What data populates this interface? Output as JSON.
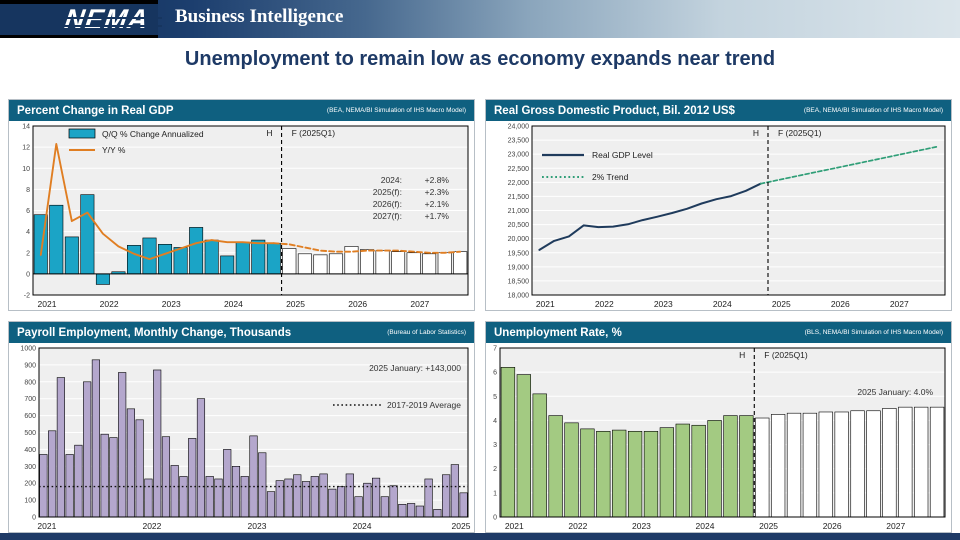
{
  "banner": {
    "logo_text": "NEMA",
    "app_title": "Business Intelligence"
  },
  "page_title": "Unemployment to remain low as economy expands near trend",
  "colors": {
    "panel_header": "#0f6080",
    "accent_navy": "#1e3a66",
    "bar_teal": "#1ba4c6",
    "line_orange": "#e07e22",
    "line_navy": "#1f3b5c",
    "trend_green": "#2f9e77",
    "bar_purple": "#b4a7cd",
    "bar_green": "#a3ca82",
    "forecast_white": "#ffffff",
    "plot_bg": "#efefef"
  },
  "panels": [
    {
      "title": "Percent Change in Real GDP",
      "source": "(BEA, NEMA/BI Simulation of IHS Macro Model)"
    },
    {
      "title": "Real Gross Domestic Product, Bil. 2012 US$",
      "source": "(BEA, NEMA/BI Simulation of IHS Macro Model)"
    },
    {
      "title": "Payroll Employment, Monthly Change, Thousands",
      "source": "(Bureau of Labor Statistics)"
    },
    {
      "title": "Unemployment Rate, %",
      "source": "(BLS, NEMA/BI Simulation of IHS Macro Model)"
    }
  ],
  "chart_data": [
    {
      "id": "gdp_change",
      "type": "bar+line",
      "title": "Percent Change in Real GDP",
      "x_years": [
        "2021",
        "2022",
        "2023",
        "2024",
        "2025",
        "2026",
        "2027"
      ],
      "slots_per_year": 4,
      "slots": 28,
      "history_slots": 16,
      "ylim": [
        -2,
        14
      ],
      "ytick_step": 2,
      "bars_label": "Q/Q % Change Annualized",
      "bars_history": [
        5.6,
        6.5,
        3.5,
        7.5,
        -1.0,
        0.2,
        2.7,
        3.4,
        2.8,
        2.5,
        4.4,
        3.2,
        1.7,
        3.0,
        3.2,
        2.9
      ],
      "bars_forecast": [
        2.4,
        1.9,
        1.8,
        1.9,
        2.6,
        2.3,
        2.2,
        2.1,
        2.0,
        1.9,
        2.0,
        2.1
      ],
      "line_label": "Y/Y %",
      "line_history": [
        1.8,
        12.3,
        5.0,
        5.8,
        3.8,
        2.6,
        1.9,
        1.4,
        1.9,
        2.4,
        2.9,
        3.2,
        3.0,
        3.0,
        2.9,
        2.9
      ],
      "line_forecast": [
        2.8,
        2.5,
        2.2,
        2.1,
        2.1,
        2.2,
        2.2,
        2.2,
        2.1,
        2.0,
        2.0,
        2.1
      ],
      "divider": {
        "history_label": "H",
        "forecast_label": "F (2025Q1)"
      },
      "annotation_rows": [
        {
          "label": "2024:",
          "value": "+2.8%"
        },
        {
          "label": "2025(f):",
          "value": "+2.3%"
        },
        {
          "label": "2026(f):",
          "value": "+2.1%"
        },
        {
          "label": "2027(f):",
          "value": "+1.7%"
        }
      ]
    },
    {
      "id": "real_gdp",
      "type": "line",
      "title": "Real Gross Domestic Product, Bil. 2012 US$",
      "x_years": [
        "2021",
        "2022",
        "2023",
        "2024",
        "2025",
        "2026",
        "2027"
      ],
      "slots_per_year": 4,
      "slots": 28,
      "history_slots": 16,
      "ylim": [
        18000,
        24000
      ],
      "ytick_step": 500,
      "ytick_format": "comma",
      "series": [
        {
          "name": "Real GDP Level",
          "style": "solid",
          "values": [
            19600,
            19920,
            20080,
            20470,
            20410,
            20430,
            20510,
            20660,
            20780,
            20910,
            21060,
            21250,
            21400,
            21510,
            21700,
            21950
          ],
          "start_slot": 0
        },
        {
          "name": "2% Trend",
          "style": "dashed",
          "values": [
            21950,
            22060,
            22170,
            22280,
            22390,
            22500,
            22610,
            22720,
            22830,
            22940,
            23050,
            23160,
            23270
          ],
          "start_slot": 15
        }
      ],
      "divider": {
        "history_label": "H",
        "forecast_label": "F (2025Q1)"
      }
    },
    {
      "id": "payroll",
      "type": "bar",
      "title": "Payroll Employment, Monthly Change, Thousands",
      "x_years": [
        "2021",
        "2022",
        "2023",
        "2024",
        "2025"
      ],
      "slots_per_year": 12,
      "slots": 49,
      "ylim": [
        0,
        1000
      ],
      "ytick_step": 100,
      "values": [
        370,
        510,
        825,
        370,
        425,
        800,
        930,
        490,
        470,
        855,
        640,
        575,
        225,
        870,
        475,
        305,
        240,
        465,
        700,
        240,
        225,
        400,
        300,
        240,
        480,
        380,
        150,
        215,
        225,
        250,
        210,
        240,
        255,
        165,
        180,
        255,
        120,
        200,
        230,
        120,
        185,
        75,
        80,
        65,
        225,
        45,
        250,
        310,
        143
      ],
      "average_line": {
        "value": 180,
        "label": "2017-2019 Average"
      },
      "annotation": "2025 January: +143,000"
    },
    {
      "id": "unemployment",
      "type": "bar",
      "title": "Unemployment Rate, %",
      "x_years": [
        "2021",
        "2022",
        "2023",
        "2024",
        "2025",
        "2026",
        "2027"
      ],
      "slots_per_year": 4,
      "slots": 28,
      "history_slots": 16,
      "ylim": [
        0,
        7
      ],
      "ytick_step": 1,
      "values_history": [
        6.2,
        5.9,
        5.1,
        4.2,
        3.9,
        3.65,
        3.55,
        3.6,
        3.55,
        3.55,
        3.7,
        3.85,
        3.8,
        4.0,
        4.2,
        4.2
      ],
      "values_forecast": [
        4.1,
        4.25,
        4.3,
        4.3,
        4.35,
        4.35,
        4.4,
        4.4,
        4.5,
        4.55,
        4.55,
        4.55
      ],
      "divider": {
        "history_label": "H",
        "forecast_label": "F (2025Q1)"
      },
      "annotation": "2025 January: 4.0%"
    }
  ]
}
